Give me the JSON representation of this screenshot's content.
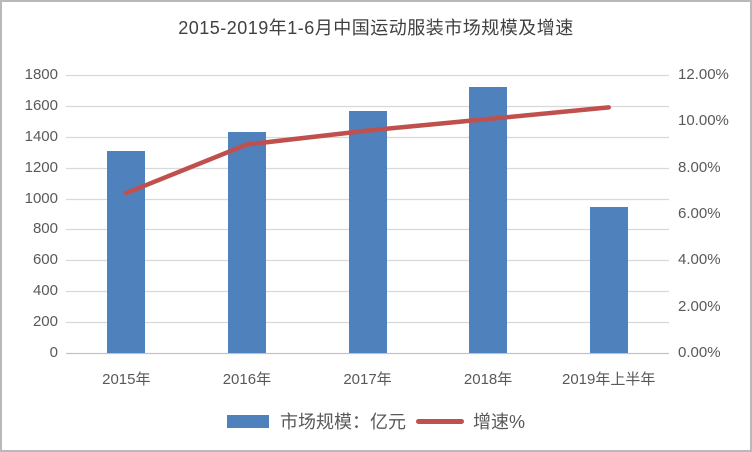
{
  "chart_data": {
    "type": "bar+line",
    "title": "2015-2019年1-6月中国运动服装市场规模及增速",
    "categories": [
      "2015年",
      "2016年",
      "2017年",
      "2018年",
      "2019年上半年"
    ],
    "series": [
      {
        "name": "市场规模：亿元",
        "type": "bar",
        "axis": "left",
        "color": "#4F81BD",
        "values": [
          1310,
          1430,
          1565,
          1725,
          945
        ]
      },
      {
        "name": "增速%",
        "type": "line",
        "axis": "right",
        "color": "#C0504D",
        "values": [
          6.9,
          9.0,
          9.6,
          10.1,
          10.6
        ]
      }
    ],
    "axes": {
      "left": {
        "min": 0,
        "max": 1800,
        "step": 200,
        "tick_labels": [
          "1800",
          "1600",
          "1400",
          "1200",
          "1000",
          "800",
          "600",
          "400",
          "200",
          "0"
        ]
      },
      "right": {
        "min": 0,
        "max": 12,
        "step": 2,
        "tick_labels": [
          "12.00%",
          "10.00%",
          "8.00%",
          "6.00%",
          "4.00%",
          "2.00%",
          "0.00%"
        ]
      }
    },
    "grid": true,
    "legend_position": "bottom",
    "colors": {
      "grid": "#d9d9d9",
      "axis_line": "#c3c3c3",
      "axis_text": "#595959",
      "title_text": "#404040",
      "border": "#b9b9b9",
      "background": "#ffffff"
    }
  }
}
